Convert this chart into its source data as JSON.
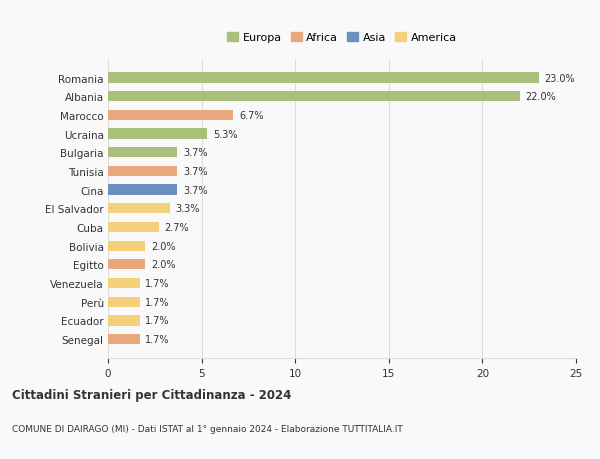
{
  "categories": [
    "Romania",
    "Albania",
    "Marocco",
    "Ucraina",
    "Bulgaria",
    "Tunisia",
    "Cina",
    "El Salvador",
    "Cuba",
    "Bolivia",
    "Egitto",
    "Venezuela",
    "Perù",
    "Ecuador",
    "Senegal"
  ],
  "values": [
    23.0,
    22.0,
    6.7,
    5.3,
    3.7,
    3.7,
    3.7,
    3.3,
    2.7,
    2.0,
    2.0,
    1.7,
    1.7,
    1.7,
    1.7
  ],
  "continents": [
    "Europa",
    "Europa",
    "Africa",
    "Europa",
    "Europa",
    "Africa",
    "Asia",
    "America",
    "America",
    "America",
    "Africa",
    "America",
    "America",
    "America",
    "Africa"
  ],
  "continent_colors": {
    "Europa": "#a8c07a",
    "Africa": "#e8a87c",
    "Asia": "#6a8fc0",
    "America": "#f5d07a"
  },
  "legend_order": [
    "Europa",
    "Africa",
    "Asia",
    "America"
  ],
  "xlim": [
    0,
    25
  ],
  "xticks": [
    0,
    5,
    10,
    15,
    20,
    25
  ],
  "title": "Cittadini Stranieri per Cittadinanza - 2024",
  "subtitle": "COMUNE DI DAIRAGO (MI) - Dati ISTAT al 1° gennaio 2024 - Elaborazione TUTTITALIA.IT",
  "bar_height": 0.55,
  "background_color": "#f9f9f9",
  "grid_color": "#dddddd",
  "text_color": "#333333"
}
